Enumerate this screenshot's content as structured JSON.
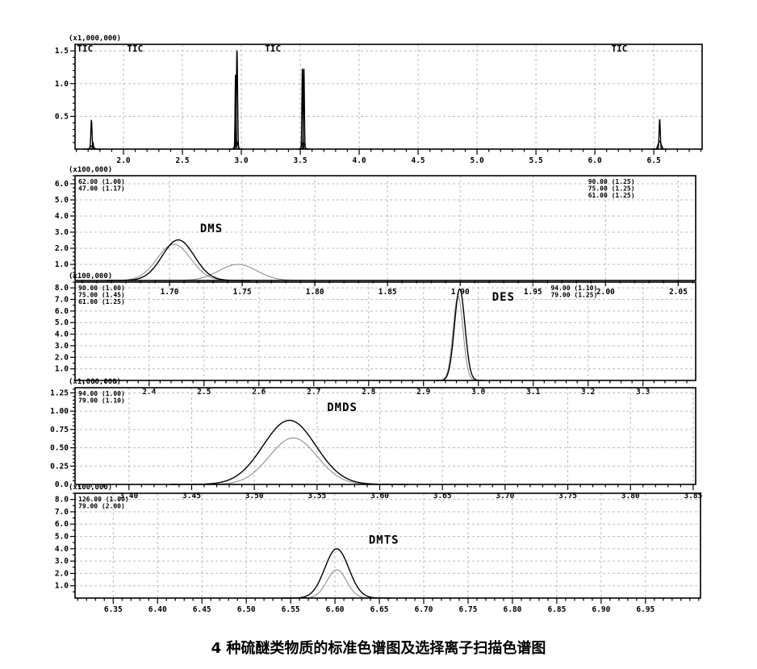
{
  "caption": "4 种硫醚类物质的标准色谱图及选择离子扫描色谱图",
  "colors": {
    "trace_primary": "#000000",
    "trace_secondary": "#8f8f8f",
    "grid": "#bcbcbc",
    "axis": "#000000"
  },
  "chart_data": [
    {
      "type": "line",
      "name": "tic-overview-panel",
      "unit_label": "(x1,000,000)",
      "x_range": [
        1.589,
        6.91
      ],
      "x_ticks": [
        2.0,
        2.5,
        3.0,
        3.5,
        4.0,
        4.5,
        5.0,
        5.5,
        6.0,
        6.5
      ],
      "x_tick_labels": [
        "2.0",
        "2.5",
        "3.0",
        "3.5",
        "4.0",
        "4.5",
        "5.0",
        "5.5",
        "6.0",
        "6.5"
      ],
      "x_minor_step": 0.1,
      "y_range": [
        0,
        1.6
      ],
      "y_ticks": [
        0.5,
        1.0,
        1.5
      ],
      "y_tick_labels": [
        "0.5",
        "1.0",
        "1.5"
      ],
      "y_minor_step": 0.1,
      "annotations": [
        {
          "text": "TIC",
          "x": 1.605,
          "y": 1.49
        },
        {
          "text": "TIC",
          "x": 2.03,
          "y": 1.49
        },
        {
          "text": "TIC",
          "x": 3.2,
          "y": 1.49
        },
        {
          "text": "TIC",
          "x": 6.14,
          "y": 1.49
        }
      ],
      "series": [
        {
          "name": "TIC",
          "color_role": "trace_primary",
          "peaks": [
            {
              "center": 1.728,
              "height": 0.44,
              "sigma": 0.005
            },
            {
              "center": 1.741,
              "height": 0.1,
              "sigma": 0.004
            },
            {
              "center": 1.732,
              "height": 0.05,
              "sigma": 0.015
            },
            {
              "center": 2.951,
              "height": 1.13,
              "sigma": 0.004
            },
            {
              "center": 2.963,
              "height": 1.5,
              "sigma": 0.005
            },
            {
              "center": 2.958,
              "height": 0.12,
              "sigma": 0.012
            },
            {
              "center": 3.518,
              "height": 1.22,
              "sigma": 0.004
            },
            {
              "center": 3.531,
              "height": 1.22,
              "sigma": 0.004
            },
            {
              "center": 3.525,
              "height": 0.1,
              "sigma": 0.012
            },
            {
              "center": 6.55,
              "height": 0.45,
              "sigma": 0.005
            },
            {
              "center": 6.55,
              "height": 0.12,
              "sigma": 0.013
            }
          ]
        }
      ]
    },
    {
      "type": "line",
      "name": "dms-panel",
      "compound": "DMS",
      "unit_label": "(x100,000)",
      "x_range": [
        1.635,
        2.062
      ],
      "x_ticks": [
        1.7,
        1.75,
        1.8,
        1.85,
        1.9,
        1.95,
        2.0,
        2.05
      ],
      "x_tick_labels": [
        "1.70",
        "1.75",
        "1.80",
        "1.85",
        "1.90",
        "1.95",
        "2.00",
        "2.05"
      ],
      "x_minor_step": 0.01,
      "y_range": [
        0,
        6.5
      ],
      "y_ticks": [
        1,
        2,
        3,
        4,
        5,
        6
      ],
      "y_tick_labels": [
        "1.0",
        "2.0",
        "3.0",
        "4.0",
        "5.0",
        "6.0"
      ],
      "y_minor_step": 0.25,
      "legend_left": [
        "62.00 (1.00)",
        "47.00 (1.17)"
      ],
      "legend_right": {
        "x": 1.988,
        "lines": [
          "90.00 (1.25)",
          "75.00 (1.25)",
          "61.00 (1.25)"
        ]
      },
      "compound_label": {
        "text": "DMS",
        "x": 1.721,
        "y": 3.0
      },
      "series": [
        {
          "name": "m/z 62",
          "color_role": "trace_primary",
          "peaks": [
            {
              "center": 1.706,
              "height": 2.52,
              "sigma": 0.011
            }
          ]
        },
        {
          "name": "m/z 47",
          "color_role": "trace_secondary",
          "peaks": [
            {
              "center": 1.703,
              "height": 2.25,
              "sigma": 0.0115
            },
            {
              "center": 1.747,
              "height": 1.0,
              "sigma": 0.013
            }
          ]
        }
      ]
    },
    {
      "type": "line",
      "name": "des-panel",
      "compound": "DES",
      "unit_label": "(x100,000)",
      "x_range": [
        2.265,
        3.396
      ],
      "x_ticks": [
        2.4,
        2.5,
        2.6,
        2.7,
        2.8,
        2.9,
        3.0,
        3.1,
        3.2,
        3.3
      ],
      "x_tick_labels": [
        "2.4",
        "2.5",
        "2.6",
        "2.7",
        "2.8",
        "2.9",
        "3.0",
        "3.1",
        "3.2",
        "3.3"
      ],
      "x_minor_step": 0.02,
      "y_range": [
        0,
        8.5
      ],
      "y_ticks": [
        1,
        2,
        3,
        4,
        5,
        6,
        7,
        8
      ],
      "y_tick_labels": [
        "1.0",
        "2.0",
        "3.0",
        "4.0",
        "5.0",
        "6.0",
        "7.0",
        "8.0"
      ],
      "y_minor_step": 0.5,
      "legend_left": [
        "90.00 (1.00)",
        "75.00 (1.45)",
        "61.00 (1.25)"
      ],
      "legend_right": {
        "x": 3.132,
        "lines": [
          "94.00 (1.10)",
          "79.00 (1.25)"
        ]
      },
      "compound_label": {
        "text": "DES",
        "x": 3.025,
        "y": 6.9
      },
      "series": [
        {
          "name": "m/z 90",
          "color_role": "trace_primary",
          "peaks": [
            {
              "center": 2.966,
              "height": 7.9,
              "sigma": 0.0095
            }
          ]
        },
        {
          "name": "m/z 75",
          "color_role": "trace_secondary",
          "peaks": [
            {
              "center": 2.963,
              "height": 7.3,
              "sigma": 0.009
            }
          ]
        }
      ]
    },
    {
      "type": "line",
      "name": "dmds-panel",
      "compound": "DMDS",
      "unit_label": "(x1,000,000)",
      "x_range": [
        3.357,
        3.852
      ],
      "x_ticks": [
        3.4,
        3.45,
        3.5,
        3.55,
        3.6,
        3.65,
        3.7,
        3.75,
        3.8,
        3.85
      ],
      "x_tick_labels": [
        "3.40",
        "3.45",
        "3.50",
        "3.55",
        "3.60",
        "3.65",
        "3.70",
        "3.75",
        "3.80",
        "3.85"
      ],
      "x_minor_step": 0.01,
      "y_range": [
        0,
        1.32
      ],
      "y_ticks": [
        0.25,
        0.5,
        0.75,
        1.0,
        1.25
      ],
      "y_tick_labels": [
        "0.25",
        "0.50",
        "0.75",
        "1.00",
        "1.25"
      ],
      "y_minor_step": 0.05,
      "y_zero_label": "0.0",
      "legend_left": [
        "94.00 (1.00)",
        "79.00 (1.10)"
      ],
      "compound_label": {
        "text": "DMDS",
        "x": 3.558,
        "y": 1.0
      },
      "series": [
        {
          "name": "m/z 94",
          "color_role": "trace_primary",
          "peaks": [
            {
              "center": 3.528,
              "height": 0.875,
              "sigma": 0.021
            }
          ]
        },
        {
          "name": "m/z 79",
          "color_role": "trace_secondary",
          "peaks": [
            {
              "center": 3.531,
              "height": 0.635,
              "sigma": 0.019
            }
          ]
        }
      ]
    },
    {
      "type": "line",
      "name": "dmts-panel",
      "compound": "DMTS",
      "unit_label": "(x100,000)",
      "x_range": [
        6.307,
        7.012
      ],
      "x_ticks": [
        6.35,
        6.4,
        6.45,
        6.5,
        6.55,
        6.6,
        6.65,
        6.7,
        6.75,
        6.8,
        6.85,
        6.9,
        6.95
      ],
      "x_tick_labels": [
        "6.35",
        "6.40",
        "6.45",
        "6.50",
        "6.55",
        "6.60",
        "6.65",
        "6.70",
        "6.75",
        "6.80",
        "6.85",
        "6.90",
        "6.95"
      ],
      "x_minor_step": 0.01,
      "y_range": [
        0,
        8.5
      ],
      "y_ticks": [
        1,
        2,
        3,
        4,
        5,
        6,
        7,
        8
      ],
      "y_tick_labels": [
        "1.0",
        "2.0",
        "3.0",
        "4.0",
        "5.0",
        "6.0",
        "7.0",
        "8.0"
      ],
      "y_minor_step": 0.5,
      "legend_left": [
        "126.00 (1.00)",
        "79.00 (2.00)"
      ],
      "compound_label": {
        "text": "DMTS",
        "x": 6.638,
        "y": 4.4
      },
      "series": [
        {
          "name": "m/z 126",
          "color_role": "trace_primary",
          "peaks": [
            {
              "center": 6.602,
              "height": 4.0,
              "sigma": 0.0135
            }
          ]
        },
        {
          "name": "m/z 79",
          "color_role": "trace_secondary",
          "peaks": [
            {
              "center": 6.602,
              "height": 2.3,
              "sigma": 0.011
            }
          ]
        }
      ]
    }
  ]
}
